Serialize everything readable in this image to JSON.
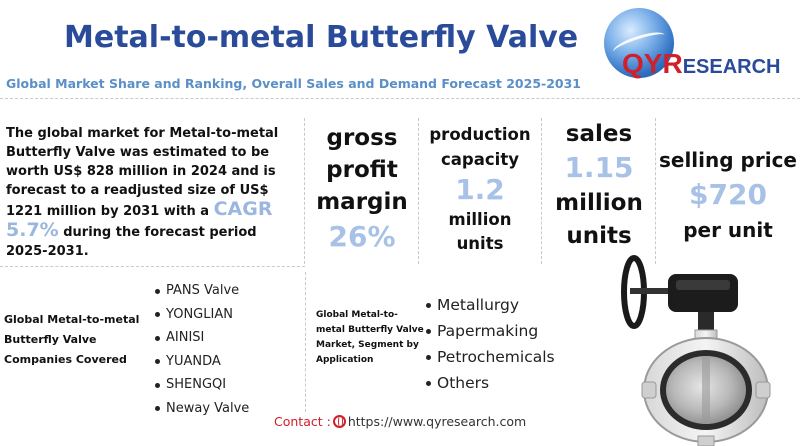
{
  "header": {
    "title": "Metal-to-metal Butterfly Valve",
    "subtitle": "Global Market Share and Ranking, Overall Sales and Demand Forecast 2025-2031"
  },
  "logo": {
    "qy": "QY",
    "r": "R",
    "rest": "ESEARCH"
  },
  "intro": {
    "text_before": "The global market for Metal-to-metal Butterfly Valve was estimated to be worth US$ 828 million in 2024 and is forecast to a readjusted size of US$ 1221 million by 2031 with a",
    "cagr": "CAGR  5.7%",
    "text_after": "during the forecast period 2025-2031."
  },
  "kpis": {
    "gross_margin": {
      "l1": "gross",
      "l2": "profit",
      "l3": "margin",
      "value": "26%"
    },
    "production": {
      "l1": "production",
      "l2": "capacity",
      "value": "1.2",
      "u1": "million",
      "u2": "units"
    },
    "sales": {
      "label": "sales",
      "value": "1.15",
      "u1": "million",
      "u2": "units"
    },
    "price": {
      "label": "selling price",
      "value": "$720",
      "unit": "per unit"
    }
  },
  "companies": {
    "title": "Global Metal-to-metal Butterfly Valve Companies Covered",
    "items": [
      "PANS Valve",
      "YONGLIAN",
      "AINISI",
      "YUANDA",
      "SHENGQI",
      "Neway Valve"
    ]
  },
  "segment": {
    "title": "Global Metal-to-metal Butterfly Valve Market, Segment by Application",
    "items": [
      "Metallurgy",
      "Papermaking",
      "Petrochemicals",
      "Others"
    ]
  },
  "contact": {
    "label": "Contact :",
    "url": "https://www.qyresearch.com"
  },
  "colors": {
    "title": "#2a4a9a",
    "subtitle": "#5a8fc7",
    "kpi_value": "#a8c1e6",
    "accent_red": "#d0202a"
  },
  "icons": {
    "logo": "globe-logo-icon",
    "contact": "globe-icon",
    "product": "butterfly-valve-image"
  }
}
